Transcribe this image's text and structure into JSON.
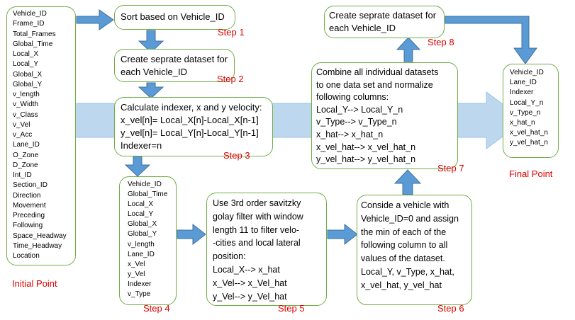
{
  "colors": {
    "box_border": "#70ad47",
    "arrow_fill": "#5b9bd5",
    "arrow_stroke": "#41719c",
    "banner": "#bdd7ee",
    "step_label": "#e00000"
  },
  "boxes": {
    "initial_columns": [
      "Vehicle_ID",
      "Frame_ID",
      "Total_Frames",
      "Global_Time",
      "Local_X",
      "Local_Y",
      "Global_X",
      "Global_Y",
      "v_length",
      "v_Width",
      "v_Class",
      "v_Vel",
      "v_Acc",
      "Lane_ID",
      "O_Zone",
      "D_Zone",
      "Int_ID",
      "Section_ID",
      "Direction",
      "Movement",
      "Preceding",
      "Following",
      "Space_Headway",
      "Time_Headway",
      "Location"
    ],
    "step1": [
      "Sort based on Vehicle_ID"
    ],
    "step2": [
      "Create seprate dataset for",
      "each Vehicle_ID"
    ],
    "step3": [
      "Calculate indexer, x and y velocity:",
      "x_vel[n]= Local_X[n]-Local_X[n-1]",
      "y_vel[n]= Local_Y[n]-Local_Y[n-1]",
      "Indexer=n"
    ],
    "step4": [
      "Vehicle_ID",
      "Global_Time",
      "Local_X",
      "Local_Y",
      "Global_X",
      "Global_Y",
      "v_length",
      "Lane_ID",
      "x_Vel",
      "y_Vel",
      "Indexer",
      "v_Type"
    ],
    "step5": [
      "Use 3rd order savitzky",
      "golay filter with window",
      "length 11 to filter velo-",
      "-cities and local lateral",
      "position:",
      "Local_X--> x_hat",
      "x_Vel--> x_Vel_hat",
      "y_Vel--> y_Vel_hat"
    ],
    "step6": [
      "Conside a vehicle with",
      "Vehicle_ID=0 and assign",
      "the min of each of the",
      "following column to all",
      "values of the dataset.",
      "Local_Y, v_Type, x_hat,",
      "x_vel_hat, y_vel_hat"
    ],
    "step7": [
      "Combine all individual datasets",
      "to one data set and normalize",
      "following columns:",
      "Local_Y--> Local_Y_n",
      "v_Type--> v_Type_n",
      "x_hat--> x_hat_n",
      "x_vel_hat--> x_vel_hat_n",
      "y_vel_hat--> y_vel_hat_n"
    ],
    "step8": [
      "Create seprate dataset for",
      "each Vehicle_ID"
    ],
    "final_columns": [
      "Vehicle_ID",
      "Lane_ID",
      "Indexer",
      "Local_Y_n",
      "v_Type_n",
      "x_hat_n",
      "x_vel_hat_n",
      "y_vel_hat_n"
    ]
  },
  "labels": {
    "step1": "Step 1",
    "step2": "Step 2",
    "step3": "Step 3",
    "step4": "Step 4",
    "step5": "Step 5",
    "step6": "Step 6",
    "step7": "Step 7",
    "step8": "Step 8",
    "initial_point": "Initial Point",
    "final_point": "Final Point"
  }
}
